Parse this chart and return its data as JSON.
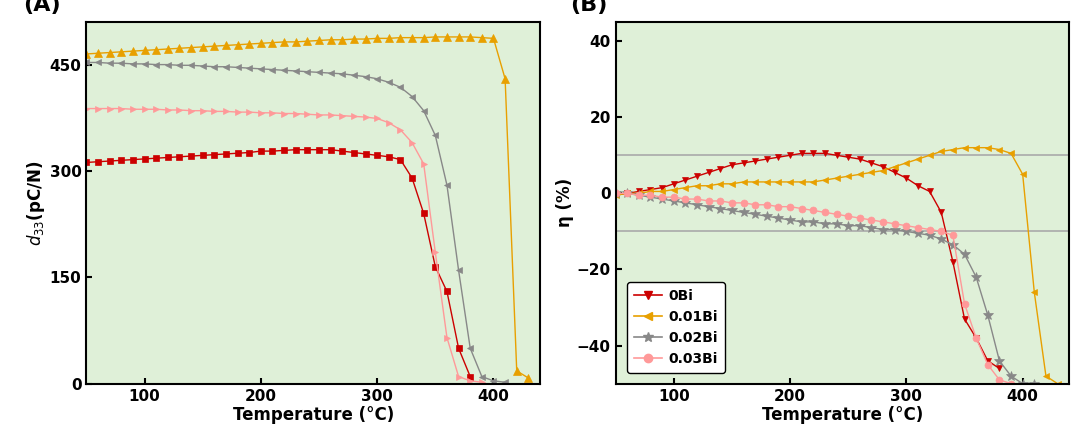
{
  "panel_A": {
    "title": "(A)",
    "xlabel": "Temperature (°C)",
    "ylabel": "$d_{33}$(pC/N)",
    "xlim": [
      50,
      440
    ],
    "ylim": [
      0,
      510
    ],
    "yticks": [
      0,
      150,
      300,
      450
    ],
    "xticks": [
      100,
      200,
      300,
      400
    ],
    "bg_color": "#dff0d8",
    "series": [
      {
        "label": "0Bi",
        "color": "#cc0000",
        "marker": "s",
        "marker_size": 5,
        "temp": [
          50,
          60,
          70,
          80,
          90,
          100,
          110,
          120,
          130,
          140,
          150,
          160,
          170,
          180,
          190,
          200,
          210,
          220,
          230,
          240,
          250,
          260,
          270,
          280,
          290,
          300,
          310,
          320,
          330,
          340,
          350,
          360,
          370,
          380
        ],
        "vals": [
          312,
          313,
          314,
          315,
          316,
          317,
          318,
          319,
          320,
          321,
          322,
          323,
          324,
          325,
          326,
          328,
          328,
          329,
          330,
          330,
          330,
          330,
          328,
          326,
          324,
          322,
          320,
          316,
          290,
          240,
          165,
          130,
          50,
          10
        ]
      },
      {
        "label": "0.01Bi",
        "color": "#e8a000",
        "marker": "^",
        "marker_size": 6,
        "temp": [
          50,
          60,
          70,
          80,
          90,
          100,
          110,
          120,
          130,
          140,
          150,
          160,
          170,
          180,
          190,
          200,
          210,
          220,
          230,
          240,
          250,
          260,
          270,
          280,
          290,
          300,
          310,
          320,
          330,
          340,
          350,
          360,
          370,
          380,
          390,
          400,
          410,
          420,
          430
        ],
        "vals": [
          465,
          466,
          467,
          468,
          469,
          470,
          471,
          472,
          473,
          474,
          475,
          476,
          477,
          478,
          479,
          480,
          481,
          482,
          482,
          483,
          484,
          485,
          485,
          486,
          486,
          487,
          487,
          488,
          488,
          488,
          489,
          489,
          489,
          489,
          488,
          487,
          430,
          18,
          8
        ]
      },
      {
        "label": "0.02Bi",
        "color": "#888888",
        "marker": "<",
        "marker_size": 5,
        "temp": [
          50,
          60,
          70,
          80,
          90,
          100,
          110,
          120,
          130,
          140,
          150,
          160,
          170,
          180,
          190,
          200,
          210,
          220,
          230,
          240,
          250,
          260,
          270,
          280,
          290,
          300,
          310,
          320,
          330,
          340,
          350,
          360,
          370,
          380,
          390,
          400,
          410
        ],
        "vals": [
          453,
          453,
          452,
          452,
          451,
          451,
          450,
          450,
          449,
          449,
          448,
          447,
          447,
          446,
          445,
          444,
          443,
          442,
          441,
          440,
          439,
          438,
          437,
          435,
          433,
          430,
          425,
          418,
          405,
          385,
          350,
          280,
          160,
          50,
          10,
          4,
          2
        ]
      },
      {
        "label": "0.03Bi",
        "color": "#ff9999",
        "marker": ">",
        "marker_size": 5,
        "temp": [
          50,
          60,
          70,
          80,
          90,
          100,
          110,
          120,
          130,
          140,
          150,
          160,
          170,
          180,
          190,
          200,
          210,
          220,
          230,
          240,
          250,
          260,
          270,
          280,
          290,
          300,
          310,
          320,
          330,
          340,
          350,
          360,
          370,
          380,
          390
        ],
        "vals": [
          388,
          388,
          388,
          388,
          387,
          387,
          387,
          386,
          386,
          385,
          385,
          384,
          384,
          383,
          383,
          382,
          382,
          381,
          381,
          380,
          379,
          379,
          378,
          377,
          376,
          374,
          368,
          358,
          340,
          310,
          185,
          65,
          10,
          4,
          2
        ]
      }
    ]
  },
  "panel_B": {
    "title": "(B)",
    "xlabel": "Temperature (°C)",
    "ylabel": "η (%)",
    "xlim": [
      50,
      440
    ],
    "ylim": [
      -50,
      45
    ],
    "yticks": [
      -40,
      -20,
      0,
      20,
      40
    ],
    "xticks": [
      100,
      200,
      300,
      400
    ],
    "hlines": [
      10,
      -10
    ],
    "hline_color": "#aaaaaa",
    "bg_color": "#dff0d8",
    "series": [
      {
        "label": "0Bi",
        "color": "#cc0000",
        "marker": "v",
        "marker_size": 5,
        "temp": [
          50,
          60,
          70,
          80,
          90,
          100,
          110,
          120,
          130,
          140,
          150,
          160,
          170,
          180,
          190,
          200,
          210,
          220,
          230,
          240,
          250,
          260,
          270,
          280,
          290,
          300,
          310,
          320,
          330,
          340,
          350,
          360,
          370,
          380
        ],
        "vals": [
          -0.5,
          0.0,
          0.5,
          1.0,
          1.5,
          2.5,
          3.5,
          4.5,
          5.5,
          6.5,
          7.5,
          8.0,
          8.5,
          9.0,
          9.5,
          10.0,
          10.5,
          10.5,
          10.5,
          10.0,
          9.5,
          9.0,
          8.0,
          7.0,
          5.5,
          4.0,
          2.0,
          0.5,
          -5,
          -18,
          -33,
          -38,
          -44,
          -46
        ]
      },
      {
        "label": "0.01Bi",
        "color": "#e8a000",
        "marker": "<",
        "marker_size": 5,
        "temp": [
          50,
          60,
          70,
          80,
          90,
          100,
          110,
          120,
          130,
          140,
          150,
          160,
          170,
          180,
          190,
          200,
          210,
          220,
          230,
          240,
          250,
          260,
          270,
          280,
          290,
          300,
          310,
          320,
          330,
          340,
          350,
          360,
          370,
          380,
          390,
          400,
          410,
          420,
          430
        ],
        "vals": [
          -0.5,
          0.0,
          0.0,
          0.5,
          0.5,
          1.0,
          1.5,
          2.0,
          2.0,
          2.5,
          2.5,
          3.0,
          3.0,
          3.0,
          3.0,
          3.0,
          3.0,
          3.0,
          3.5,
          4.0,
          4.5,
          5.0,
          5.5,
          6.0,
          7.0,
          8.0,
          9.0,
          10.0,
          11.0,
          11.5,
          12.0,
          12.0,
          12.0,
          11.5,
          10.5,
          5.0,
          -26,
          -48,
          -50
        ]
      },
      {
        "label": "0.02Bi",
        "color": "#888888",
        "marker": "*",
        "marker_size": 7,
        "temp": [
          50,
          60,
          70,
          80,
          90,
          100,
          110,
          120,
          130,
          140,
          150,
          160,
          170,
          180,
          190,
          200,
          210,
          220,
          230,
          240,
          250,
          260,
          270,
          280,
          290,
          300,
          310,
          320,
          330,
          340,
          350,
          360,
          370,
          380,
          390,
          400,
          410
        ],
        "vals": [
          0,
          0,
          -0.5,
          -1.0,
          -1.5,
          -2.0,
          -2.5,
          -3.0,
          -3.5,
          -4.0,
          -4.5,
          -5.0,
          -5.5,
          -6.0,
          -6.5,
          -7.0,
          -7.5,
          -7.5,
          -8.0,
          -8.0,
          -8.5,
          -8.5,
          -9.0,
          -9.5,
          -9.5,
          -10.0,
          -10.5,
          -11.0,
          -12.0,
          -13.5,
          -16,
          -22,
          -32,
          -44,
          -48,
          -50,
          -50
        ]
      },
      {
        "label": "0.03Bi",
        "color": "#ff9999",
        "marker": "o",
        "marker_size": 5,
        "temp": [
          50,
          60,
          70,
          80,
          90,
          100,
          110,
          120,
          130,
          140,
          150,
          160,
          170,
          180,
          190,
          200,
          210,
          220,
          230,
          240,
          250,
          260,
          270,
          280,
          290,
          300,
          310,
          320,
          330,
          340,
          350,
          360,
          370,
          380,
          390
        ],
        "vals": [
          0,
          0,
          -0.5,
          -0.5,
          -1.0,
          -1.0,
          -1.5,
          -1.5,
          -2.0,
          -2.0,
          -2.5,
          -2.5,
          -3.0,
          -3.0,
          -3.5,
          -3.5,
          -4.0,
          -4.5,
          -5.0,
          -5.5,
          -6.0,
          -6.5,
          -7.0,
          -7.5,
          -8.0,
          -8.5,
          -9.0,
          -9.5,
          -10.0,
          -11.0,
          -29,
          -38,
          -45,
          -49,
          -50
        ]
      }
    ],
    "legend_labels": [
      "0Bi",
      "0.01Bi",
      "0.02Bi",
      "0.03Bi"
    ],
    "legend_colors": [
      "#cc0000",
      "#e8a000",
      "#888888",
      "#ff9999"
    ],
    "legend_markers": [
      "v",
      "<",
      "*",
      "o"
    ]
  }
}
